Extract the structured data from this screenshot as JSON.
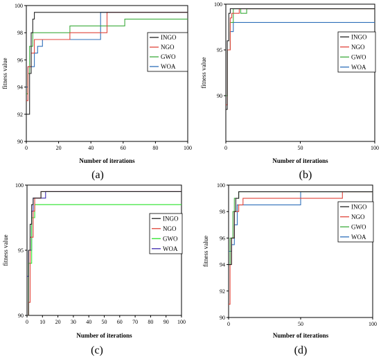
{
  "panels": [
    {
      "caption": "(a)",
      "chart_data": {
        "type": "line",
        "xlabel": "Number of iterations",
        "ylabel": "fitness value",
        "xlim": [
          0,
          100
        ],
        "ylim": [
          90,
          100
        ],
        "xticks": [
          "0",
          "20",
          "40",
          "60",
          "80",
          "100"
        ],
        "yticks": [
          "90",
          "92",
          "94",
          "96",
          "98",
          "100"
        ],
        "legend_position": "right",
        "series": [
          {
            "name": "INGO",
            "color": "#222222",
            "points": [
              [
                0,
                92
              ],
              [
                2,
                95
              ],
              [
                3,
                98
              ],
              [
                4,
                99
              ],
              [
                5,
                99.5
              ],
              [
                100,
                99.5
              ]
            ]
          },
          {
            "name": "NGO",
            "color": "#e0443a",
            "points": [
              [
                0,
                93
              ],
              [
                1,
                95.5
              ],
              [
                3,
                96.5
              ],
              [
                5,
                97.5
              ],
              [
                8,
                97.5
              ],
              [
                27,
                97.5
              ],
              [
                27,
                98
              ],
              [
                48,
                98
              ],
              [
                50,
                99.5
              ],
              [
                100,
                99.5
              ]
            ]
          },
          {
            "name": "GWO",
            "color": "#3cab3c",
            "points": [
              [
                0,
                93.5
              ],
              [
                1,
                95
              ],
              [
                2,
                97
              ],
              [
                4,
                98
              ],
              [
                27,
                98
              ],
              [
                27,
                98.5
              ],
              [
                60,
                98.5
              ],
              [
                61,
                99
              ],
              [
                100,
                99
              ]
            ]
          },
          {
            "name": "WOA",
            "color": "#2e6fba",
            "points": [
              [
                0,
                94
              ],
              [
                1,
                95.5
              ],
              [
                4,
                95.5
              ],
              [
                5,
                96.5
              ],
              [
                7,
                97
              ],
              [
                10,
                97.5
              ],
              [
                45,
                97.5
              ],
              [
                46,
                99.5
              ],
              [
                100,
                99.5
              ]
            ]
          }
        ]
      }
    },
    {
      "caption": "(b)",
      "chart_data": {
        "type": "line",
        "xlabel": "Number of iterations",
        "ylabel": "fitness value",
        "xlim": [
          0,
          100
        ],
        "ylim": [
          85,
          100
        ],
        "xticks": [
          "0",
          "50",
          "100"
        ],
        "yticks": [
          "90",
          "95",
          "100"
        ],
        "legend_position": "right",
        "series": [
          {
            "name": "INGO",
            "color": "#222222",
            "points": [
              [
                0,
                88.5
              ],
              [
                1,
                96
              ],
              [
                2,
                99
              ],
              [
                3,
                99.5
              ],
              [
                100,
                99.5
              ]
            ]
          },
          {
            "name": "NGO",
            "color": "#e0443a",
            "points": [
              [
                0,
                89
              ],
              [
                1,
                95
              ],
              [
                3,
                98.5
              ],
              [
                4,
                99
              ],
              [
                8,
                99
              ],
              [
                9,
                99.5
              ],
              [
                100,
                99.5
              ]
            ]
          },
          {
            "name": "GWO",
            "color": "#3cab3c",
            "points": [
              [
                0,
                90
              ],
              [
                1,
                95
              ],
              [
                3,
                98
              ],
              [
                5,
                99.5
              ],
              [
                10,
                99
              ],
              [
                14,
                99.5
              ],
              [
                100,
                99.5
              ]
            ]
          },
          {
            "name": "WOA",
            "color": "#2e6fba",
            "points": [
              [
                0,
                90
              ],
              [
                1,
                95
              ],
              [
                3,
                97
              ],
              [
                5,
                98
              ],
              [
                100,
                98
              ]
            ]
          }
        ]
      }
    },
    {
      "caption": "(c)",
      "chart_data": {
        "type": "line",
        "xlabel": "Number of iterations",
        "ylabel": "fitness value",
        "xlim": [
          0,
          100
        ],
        "ylim": [
          90,
          100
        ],
        "xticks": [
          "0",
          "10",
          "20",
          "30",
          "40",
          "50",
          "60",
          "70",
          "80",
          "90",
          "100"
        ],
        "yticks": [
          "90",
          "95",
          "100"
        ],
        "legend_position": "right",
        "series": [
          {
            "name": "INGO",
            "color": "#222222",
            "points": [
              [
                0,
                90
              ],
              [
                1,
                95
              ],
              [
                2,
                97
              ],
              [
                3,
                98.5
              ],
              [
                4,
                99
              ],
              [
                8,
                99
              ],
              [
                9,
                99.5
              ],
              [
                100,
                99.5
              ]
            ]
          },
          {
            "name": "NGO",
            "color": "#e0443a",
            "points": [
              [
                0,
                90
              ],
              [
                1,
                91
              ],
              [
                2,
                96
              ],
              [
                4,
                98
              ],
              [
                5,
                99
              ],
              [
                8,
                99
              ],
              [
                9,
                99.5
              ],
              [
                100,
                99.5
              ]
            ]
          },
          {
            "name": "GWO",
            "color": "#28e428",
            "points": [
              [
                0,
                90
              ],
              [
                1,
                94
              ],
              [
                3,
                97.5
              ],
              [
                5,
                98.5
              ],
              [
                100,
                98.5
              ]
            ]
          },
          {
            "name": "WOA",
            "color": "#3e2bb0",
            "points": [
              [
                0,
                93
              ],
              [
                1,
                95
              ],
              [
                3,
                98
              ],
              [
                4,
                99
              ],
              [
                11,
                99
              ],
              [
                12,
                99.5
              ],
              [
                100,
                99.5
              ]
            ]
          }
        ]
      }
    },
    {
      "caption": "(d)",
      "chart_data": {
        "type": "line",
        "xlabel": "Number of iterations",
        "ylabel": "fitness value",
        "xlim": [
          0,
          100
        ],
        "ylim": [
          90,
          100
        ],
        "xticks": [
          "0",
          "50",
          "100"
        ],
        "yticks": [
          "90",
          "92",
          "94",
          "96",
          "98",
          "100"
        ],
        "legend_position": "right",
        "series": [
          {
            "name": "INGO",
            "color": "#222222",
            "points": [
              [
                0,
                94
              ],
              [
                2,
                96
              ],
              [
                4,
                98
              ],
              [
                5,
                99
              ],
              [
                7,
                99.5
              ],
              [
                100,
                99.5
              ]
            ]
          },
          {
            "name": "NGO",
            "color": "#e0443a",
            "points": [
              [
                0,
                91
              ],
              [
                1,
                94
              ],
              [
                2,
                96
              ],
              [
                4,
                98
              ],
              [
                7,
                98.5
              ],
              [
                10,
                99
              ],
              [
                78,
                99
              ],
              [
                79,
                99.5
              ],
              [
                100,
                99.5
              ]
            ]
          },
          {
            "name": "GWO",
            "color": "#3cab3c",
            "points": [
              [
                0,
                94
              ],
              [
                1,
                96
              ],
              [
                3,
                98
              ],
              [
                4,
                99
              ],
              [
                7,
                99.5
              ],
              [
                100,
                99.5
              ]
            ]
          },
          {
            "name": "WOA",
            "color": "#2e6fba",
            "points": [
              [
                0,
                95
              ],
              [
                2,
                95.5
              ],
              [
                4,
                97
              ],
              [
                6,
                98.5
              ],
              [
                49,
                98.5
              ],
              [
                50,
                99.5
              ],
              [
                100,
                99.5
              ]
            ]
          }
        ]
      }
    }
  ]
}
